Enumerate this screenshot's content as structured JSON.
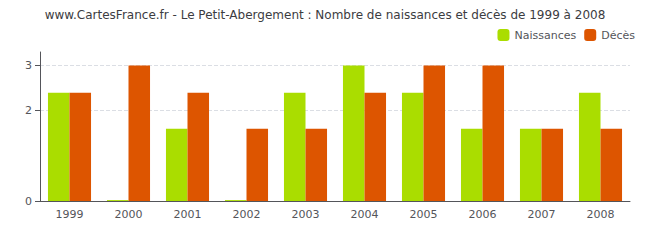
{
  "chart_data": {
    "type": "bar",
    "title": "www.CartesFrance.fr - Le Petit-Abergement : Nombre de naissances et décès de 1999 à 2008",
    "categories": [
      "1999",
      "2000",
      "2001",
      "2002",
      "2003",
      "2004",
      "2005",
      "2006",
      "2007",
      "2008"
    ],
    "series": [
      {
        "name": "Naissances",
        "color": "#aadd00",
        "values": [
          2.4,
          0.02,
          1.6,
          0.02,
          2.4,
          3,
          2.4,
          1.6,
          1.6,
          2.4
        ]
      },
      {
        "name": "Décès",
        "color": "#dd5500",
        "values": [
          2.4,
          3,
          2.4,
          1.6,
          1.6,
          2.4,
          3,
          3,
          1.6,
          1.6
        ]
      }
    ],
    "ylim": [
      0,
      3.3
    ],
    "yticks": [
      0,
      2,
      3
    ],
    "grid": true,
    "legend": "upper right"
  }
}
